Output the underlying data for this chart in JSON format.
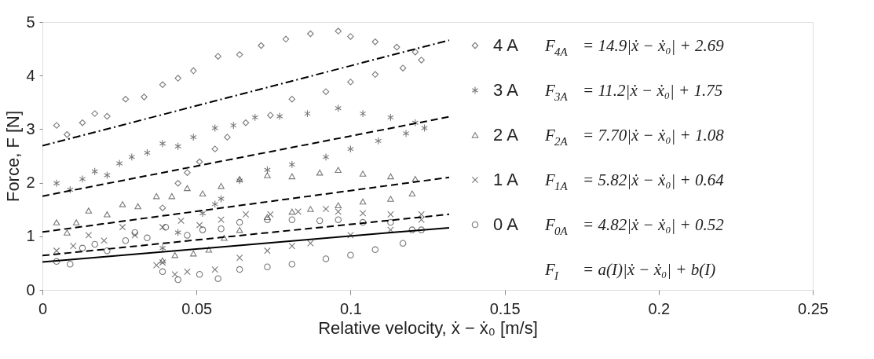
{
  "chart_data": {
    "type": "scatter",
    "xlabel": "Relative velocity,  ẋ − ẋ₀ [m/s]",
    "ylabel": "Force,  F [N]",
    "xlim": [
      0,
      0.25
    ],
    "xticks": [
      0,
      0.05,
      0.1,
      0.15,
      0.2,
      0.25
    ],
    "ylim": [
      0,
      5
    ],
    "yticks": [
      0,
      1,
      2,
      3,
      4,
      5
    ],
    "grid": false,
    "legend": "right",
    "annotations": [
      "F$_{4A}$ = 14.9|ẋ − ẋ₀| + 2.69",
      "F$_{3A}$ = 11.2|ẋ − ẋ₀| + 1.75",
      "F$_{2A}$ = 7.70|ẋ − ẋ₀| + 1.08",
      "F$_{1A}$ = 5.82|ẋ − ẋ₀| + 0.64",
      "F$_{0A}$ = 4.82|ẋ − ẋ₀| + 0.52",
      "F$_{I}$ = a(I)|ẋ − ẋ₀| + b(I)"
    ],
    "series": [
      {
        "name": "4 A",
        "marker": "diamond",
        "color": "#404040",
        "x": [
          0.0046,
          0.008,
          0.013,
          0.017,
          0.021,
          0.027,
          0.033,
          0.039,
          0.044,
          0.049,
          0.057,
          0.064,
          0.071,
          0.079,
          0.087,
          0.096,
          0.1,
          0.108,
          0.115,
          0.121,
          0.123,
          0.117,
          0.108,
          0.1,
          0.092,
          0.081,
          0.074,
          0.066,
          0.06,
          0.056,
          0.051,
          0.047,
          0.044,
          0.039
        ],
        "values": [
          3.07,
          2.9,
          3.12,
          3.29,
          3.24,
          3.56,
          3.6,
          3.83,
          3.95,
          4.09,
          4.36,
          4.39,
          4.56,
          4.68,
          4.78,
          4.83,
          4.73,
          4.63,
          4.53,
          4.44,
          4.29,
          4.14,
          4.02,
          3.88,
          3.7,
          3.56,
          3.26,
          3.12,
          2.85,
          2.63,
          2.39,
          2.19,
          1.99,
          1.53
        ]
      },
      {
        "name": "3 A",
        "color": "#404040",
        "x": [
          0.0046,
          0.009,
          0.013,
          0.017,
          0.021,
          0.025,
          0.029,
          0.034,
          0.039,
          0.044,
          0.049,
          0.056,
          0.062,
          0.069,
          0.077,
          0.086,
          0.096,
          0.104,
          0.113,
          0.121,
          0.124,
          0.118,
          0.109,
          0.1,
          0.092,
          0.081,
          0.073,
          0.064,
          0.058,
          0.056,
          0.052,
          0.044,
          0.039
        ],
        "values": [
          1.99,
          1.87,
          2.07,
          2.21,
          2.14,
          2.36,
          2.48,
          2.56,
          2.73,
          2.68,
          2.85,
          3.02,
          3.07,
          3.22,
          3.24,
          3.29,
          3.39,
          3.29,
          3.22,
          3.12,
          3.02,
          2.92,
          2.78,
          2.63,
          2.48,
          2.34,
          2.24,
          2.04,
          1.7,
          1.6,
          1.43,
          1.07,
          0.78
        ]
      },
      {
        "name": "2 A",
        "marker": "triangle",
        "color": "#404040",
        "x": [
          0.0046,
          0.008,
          0.011,
          0.015,
          0.021,
          0.026,
          0.031,
          0.037,
          0.042,
          0.047,
          0.052,
          0.058,
          0.064,
          0.073,
          0.081,
          0.09,
          0.096,
          0.104,
          0.113,
          0.121,
          0.12,
          0.113,
          0.104,
          0.096,
          0.087,
          0.081,
          0.073,
          0.064,
          0.059,
          0.054,
          0.049,
          0.043,
          0.039
        ],
        "values": [
          1.26,
          1.07,
          1.26,
          1.48,
          1.41,
          1.6,
          1.56,
          1.75,
          1.75,
          1.9,
          1.8,
          1.94,
          2.07,
          2.14,
          2.12,
          2.19,
          2.24,
          2.17,
          2.12,
          2.07,
          1.8,
          1.7,
          1.65,
          1.58,
          1.51,
          1.46,
          1.36,
          1.12,
          0.97,
          0.75,
          0.68,
          0.65,
          0.55
        ]
      },
      {
        "name": "1 A",
        "marker": "cross",
        "color": "#404040",
        "x": [
          0.0046,
          0.01,
          0.015,
          0.02,
          0.026,
          0.03,
          0.039,
          0.045,
          0.051,
          0.058,
          0.066,
          0.074,
          0.083,
          0.092,
          0.096,
          0.104,
          0.113,
          0.123,
          0.123,
          0.113,
          0.1,
          0.087,
          0.081,
          0.073,
          0.064,
          0.056,
          0.047,
          0.043,
          0.039,
          0.037
        ],
        "values": [
          0.73,
          0.82,
          1.02,
          0.92,
          1.17,
          1.02,
          1.17,
          1.29,
          1.21,
          1.31,
          1.41,
          1.41,
          1.46,
          1.51,
          1.46,
          1.43,
          1.41,
          1.41,
          1.31,
          1.12,
          1.02,
          0.87,
          0.82,
          0.73,
          0.6,
          0.38,
          0.34,
          0.29,
          0.51,
          0.46
        ]
      },
      {
        "name": "0 A",
        "marker": "circle",
        "color": "#404040",
        "x": [
          0.0046,
          0.009,
          0.013,
          0.017,
          0.021,
          0.027,
          0.03,
          0.034,
          0.04,
          0.047,
          0.052,
          0.058,
          0.064,
          0.073,
          0.081,
          0.09,
          0.096,
          0.104,
          0.113,
          0.123,
          0.12,
          0.117,
          0.108,
          0.1,
          0.092,
          0.081,
          0.073,
          0.064,
          0.057,
          0.051,
          0.044,
          0.039
        ],
        "values": [
          0.53,
          0.48,
          0.78,
          0.85,
          0.73,
          0.92,
          1.07,
          0.97,
          1.17,
          1.02,
          1.12,
          1.14,
          1.26,
          1.31,
          1.31,
          1.29,
          1.31,
          1.26,
          1.26,
          1.12,
          1.12,
          0.87,
          0.75,
          0.65,
          0.58,
          0.48,
          0.43,
          0.38,
          0.21,
          0.29,
          0.19,
          0.34
        ]
      },
      {
        "type": "line",
        "line_style": "dotted",
        "color": "#000000",
        "x": [
          0,
          0.132
        ],
        "values": [
          2.69,
          4.66
        ]
      },
      {
        "type": "line",
        "line_style": "dashed",
        "color": "#000000",
        "x": [
          0,
          0.132
        ],
        "values": [
          1.75,
          3.23
        ]
      },
      {
        "type": "line",
        "line_style": "dashed",
        "color": "#000000",
        "x": [
          0,
          0.132
        ],
        "values": [
          1.08,
          2.1
        ]
      },
      {
        "type": "line",
        "line_style": "dashed",
        "color": "#000000",
        "x": [
          0,
          0.132
        ],
        "values": [
          0.64,
          1.41
        ]
      },
      {
        "type": "line",
        "line_style": "solid",
        "color": "#000000",
        "x": [
          0,
          0.132
        ],
        "values": [
          0.52,
          1.16
        ]
      }
    ]
  }
}
